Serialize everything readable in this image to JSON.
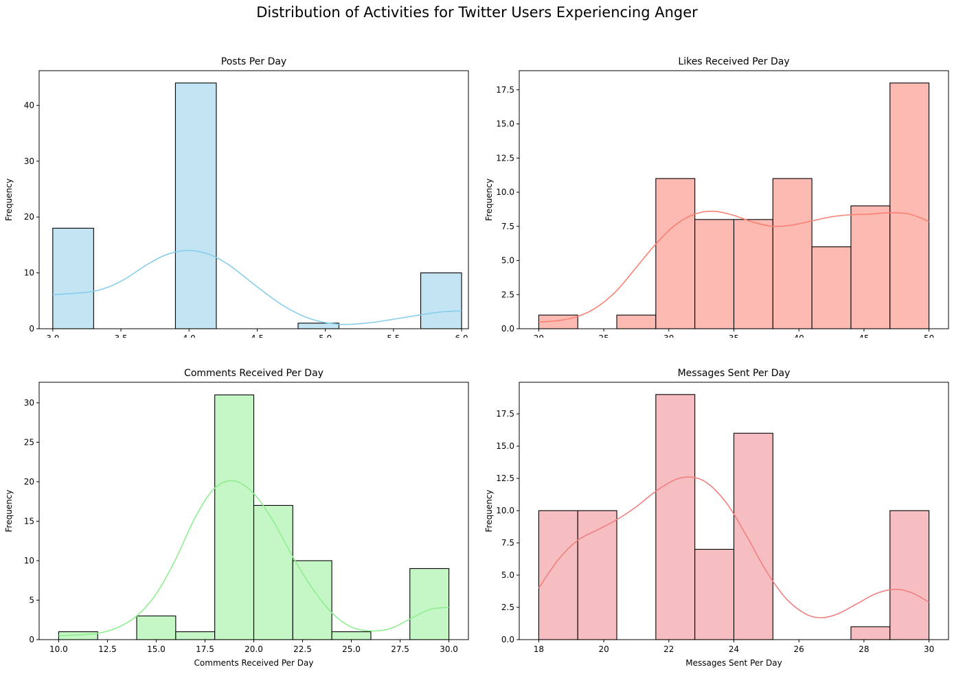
{
  "figure": {
    "title": "Distribution of Activities for Twitter Users Experiencing Anger"
  },
  "chart_data": [
    {
      "type": "bar",
      "title": "Posts Per Day",
      "xlabel": "Posts Per Day",
      "ylabel": "Frequency",
      "xlim": [
        2.9,
        6.05
      ],
      "ylim": [
        0,
        46.2
      ],
      "xticks": [
        3.0,
        3.5,
        4.0,
        4.5,
        5.0,
        5.5,
        6.0
      ],
      "xtick_labels": [
        "3.0",
        "3.5",
        "4.0",
        "4.5",
        "5.0",
        "5.5",
        "6.0"
      ],
      "yticks": [
        0,
        10,
        20,
        30,
        40
      ],
      "ytick_labels": [
        "0",
        "10",
        "20",
        "30",
        "40"
      ],
      "bin_edges": [
        3.0,
        3.3,
        3.6,
        3.9,
        4.2,
        4.5,
        4.8,
        5.1,
        5.4,
        5.7,
        6.0
      ],
      "counts": [
        18,
        0,
        0,
        44,
        0,
        0,
        1,
        0,
        0,
        10
      ],
      "fill_color": "#c3e4f3",
      "kde_color": "#87ceeb",
      "kde": {
        "x": [
          3.0,
          3.3,
          3.5,
          3.7,
          3.85,
          4.0,
          4.15,
          4.3,
          4.5,
          4.7,
          4.9,
          5.1,
          5.3,
          5.5,
          5.7,
          5.85,
          6.0
        ],
        "y": [
          6.1,
          6.7,
          8.5,
          11.6,
          13.4,
          14.0,
          13.3,
          11.3,
          7.5,
          4.0,
          1.7,
          0.8,
          1.0,
          1.7,
          2.5,
          3.0,
          3.2
        ]
      },
      "grid": false
    },
    {
      "type": "bar",
      "title": "Likes Received Per Day",
      "xlabel": "Likes Received Per Day",
      "ylabel": "Frequency",
      "xlim": [
        18.5,
        51.5
      ],
      "ylim": [
        0,
        18.9
      ],
      "xticks": [
        20,
        25,
        30,
        35,
        40,
        45,
        50
      ],
      "xtick_labels": [
        "20",
        "25",
        "30",
        "35",
        "40",
        "45",
        "50"
      ],
      "yticks": [
        0,
        2.5,
        5.0,
        7.5,
        10.0,
        12.5,
        15.0,
        17.5
      ],
      "ytick_labels": [
        "0.0",
        "2.5",
        "5.0",
        "7.5",
        "10.0",
        "12.5",
        "15.0",
        "17.5"
      ],
      "bin_edges": [
        20,
        23,
        26,
        29,
        32,
        35,
        38,
        41,
        44,
        47,
        50
      ],
      "counts": [
        1,
        0,
        1,
        11,
        8,
        8,
        11,
        6,
        9,
        18
      ],
      "fill_color": "#fcbab2",
      "kde_color": "#fa8072",
      "kde": {
        "x": [
          20,
          21.5,
          23,
          24.5,
          26,
          27.5,
          29,
          30.5,
          32,
          33.5,
          35,
          36.5,
          38,
          39.5,
          41,
          42.5,
          44,
          45.5,
          47,
          48.5,
          50
        ],
        "y": [
          0.5,
          0.6,
          0.9,
          1.6,
          2.8,
          4.5,
          6.2,
          7.6,
          8.4,
          8.6,
          8.3,
          7.8,
          7.5,
          7.6,
          7.9,
          8.2,
          8.35,
          8.4,
          8.5,
          8.4,
          7.85
        ]
      },
      "grid": false
    },
    {
      "type": "bar",
      "title": "Comments Received Per Day",
      "xlabel": "Comments Received Per Day",
      "ylabel": "Frequency",
      "xlim": [
        9.0,
        31.0
      ],
      "ylim": [
        0,
        32.6
      ],
      "xticks": [
        10.0,
        12.5,
        15.0,
        17.5,
        20.0,
        22.5,
        25.0,
        27.5,
        30.0
      ],
      "xtick_labels": [
        "10.0",
        "12.5",
        "15.0",
        "17.5",
        "20.0",
        "22.5",
        "25.0",
        "27.5",
        "30.0"
      ],
      "yticks": [
        0,
        5,
        10,
        15,
        20,
        25,
        30
      ],
      "ytick_labels": [
        "0",
        "5",
        "10",
        "15",
        "20",
        "25",
        "30"
      ],
      "bin_edges": [
        10,
        12,
        14,
        16,
        18,
        20,
        22,
        24,
        26,
        28,
        30
      ],
      "counts": [
        1,
        0,
        3,
        1,
        31,
        17,
        10,
        1,
        0,
        9
      ],
      "fill_color": "#c5f6c5",
      "kde_color": "#90ee90",
      "kde": {
        "x": [
          10,
          11,
          12,
          13,
          14,
          15,
          16,
          17,
          18,
          19,
          20,
          21,
          22,
          23,
          24,
          25,
          26,
          27,
          28,
          29,
          30
        ],
        "y": [
          0.5,
          0.6,
          0.8,
          1.5,
          3.0,
          5.8,
          10.2,
          15.5,
          19.2,
          20.1,
          18.5,
          15.0,
          10.5,
          6.5,
          3.4,
          1.6,
          1.1,
          1.4,
          2.6,
          3.8,
          4.1
        ]
      },
      "grid": false
    },
    {
      "type": "bar",
      "title": "Messages Sent Per Day",
      "xlabel": "Messages Sent Per Day",
      "ylabel": "Frequency",
      "xlim": [
        17.4,
        30.6
      ],
      "ylim": [
        0,
        19.95
      ],
      "xticks": [
        18,
        20,
        22,
        24,
        26,
        28,
        30
      ],
      "xtick_labels": [
        "18",
        "20",
        "22",
        "24",
        "26",
        "28",
        "30"
      ],
      "yticks": [
        0,
        2.5,
        5.0,
        7.5,
        10.0,
        12.5,
        15.0,
        17.5
      ],
      "ytick_labels": [
        "0.0",
        "2.5",
        "5.0",
        "7.5",
        "10.0",
        "12.5",
        "15.0",
        "17.5"
      ],
      "bin_edges": [
        18.0,
        19.2,
        20.4,
        21.6,
        22.8,
        24.0,
        25.2,
        26.4,
        27.6,
        28.8,
        30.0
      ],
      "counts": [
        10,
        10,
        0,
        19,
        7,
        16,
        0,
        0,
        1,
        10
      ],
      "fill_color": "#f6bec0",
      "kde_color": "#f08080",
      "kde": {
        "x": [
          18,
          18.6,
          19.2,
          19.8,
          20.4,
          21.0,
          21.6,
          22.2,
          22.7,
          23.2,
          23.8,
          24.4,
          25.0,
          25.6,
          26.2,
          26.7,
          27.2,
          27.8,
          28.4,
          29.0,
          29.5,
          30.0
        ],
        "y": [
          4.0,
          6.2,
          7.7,
          8.5,
          9.3,
          10.3,
          11.5,
          12.4,
          12.6,
          12.1,
          10.5,
          8.0,
          5.3,
          3.2,
          2.0,
          1.7,
          2.0,
          2.8,
          3.6,
          3.9,
          3.6,
          2.9
        ]
      },
      "grid": false
    }
  ]
}
